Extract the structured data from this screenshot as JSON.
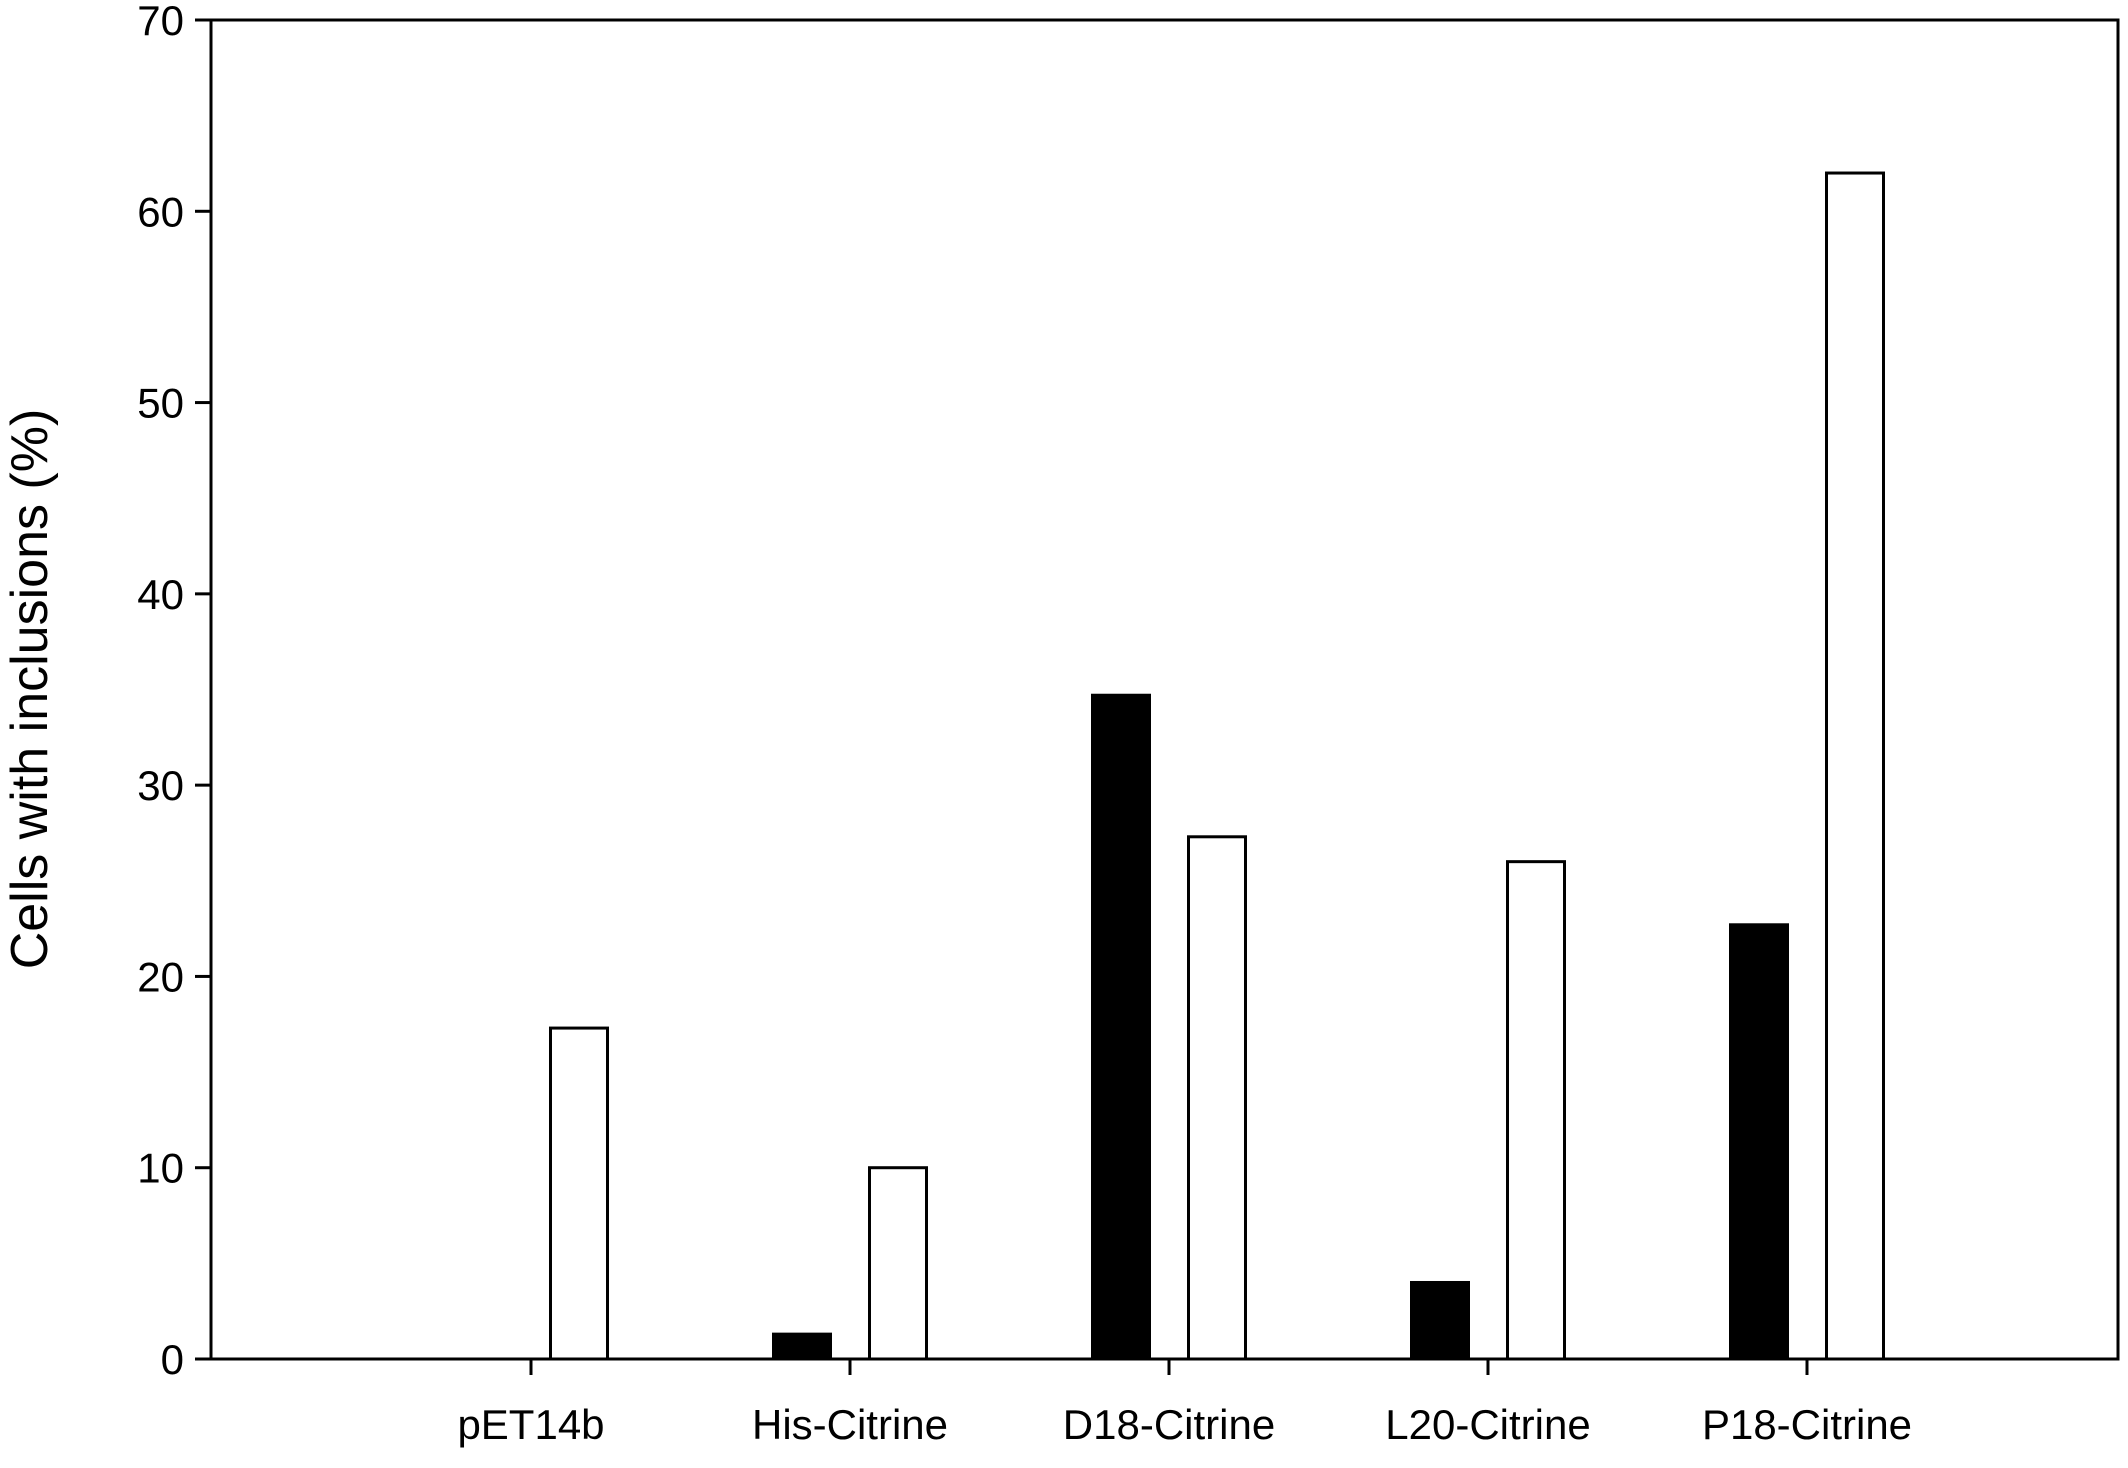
{
  "chart_data": {
    "type": "bar",
    "title": "",
    "xlabel": "",
    "ylabel": "Cells with inclusions (%)",
    "categories": [
      "pET14b",
      "His-Citrine",
      "D18-Citrine",
      "L20-Citrine",
      "P18-Citrine"
    ],
    "series": [
      {
        "values": [
          0,
          1.3,
          34.7,
          4.0,
          22.7
        ],
        "fill": "#000000"
      },
      {
        "values": [
          17.3,
          10.0,
          27.3,
          26.0,
          62.0
        ],
        "fill": "#ffffff"
      }
    ],
    "ylim": [
      0,
      70
    ],
    "yticks": [
      "0",
      "10",
      "20",
      "30",
      "40",
      "50",
      "60",
      "70"
    ],
    "grid": false,
    "legend": "none"
  }
}
